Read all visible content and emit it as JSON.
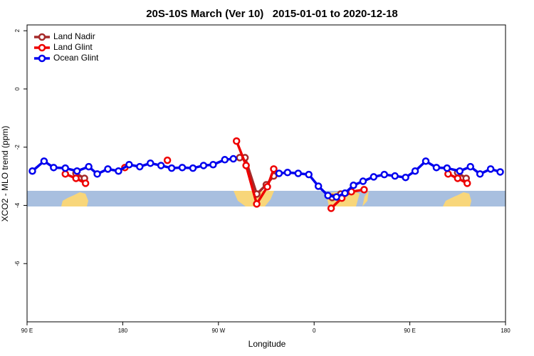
{
  "chart_data": {
    "type": "line",
    "title": "20S-10S March (Ver 10)   2015-01-01 to 2020-12-18",
    "x_label": "Longitude",
    "y_label": "XCO2 - MLO trend (ppm)",
    "xlim": [
      90,
      540
    ],
    "ylim": [
      -8,
      2.2
    ],
    "xticks": [
      {
        "value": 90,
        "label": "90 E"
      },
      180,
      {
        "value": 270,
        "label": "90 W"
      },
      {
        "value": 360,
        "label": "0"
      },
      {
        "value": 450,
        "label": "90 E"
      },
      {
        "value": 540,
        "label": "180"
      }
    ],
    "yticks": [
      2,
      0,
      -2,
      -4,
      -6
    ],
    "legend": "top-left",
    "series": [
      {
        "name": "Land Nadir",
        "color": "#a52a2a",
        "x": [
          136,
          144,
          null,
          290,
          295,
          306,
          315,
          322,
          null,
          377,
          385,
          null,
          495,
          503
        ],
        "values": [
          -2.9,
          -3.07,
          null,
          -2.36,
          -2.36,
          -3.61,
          -3.29,
          -2.99,
          null,
          -3.73,
          -3.61,
          null,
          -2.87,
          -3.07
        ]
      },
      {
        "name": "Land Glint",
        "color": "#ee0000",
        "x": [
          126,
          136,
          145,
          null,
          182,
          null,
          222,
          null,
          287,
          296,
          306,
          316,
          322,
          null,
          376,
          386,
          395,
          407,
          null,
          486,
          495,
          504
        ],
        "values": [
          -2.92,
          -3.07,
          -3.24,
          null,
          -2.7,
          null,
          -2.45,
          null,
          -1.79,
          -2.63,
          -3.95,
          -3.36,
          -2.75,
          null,
          -4.1,
          -3.75,
          -3.53,
          -3.46,
          null,
          -2.92,
          -3.07,
          -3.24
        ]
      },
      {
        "name": "Ocean Glint",
        "color": "#0000ee",
        "x": [
          95,
          106,
          115,
          126,
          137,
          148,
          156,
          166,
          176,
          186,
          196,
          206,
          216,
          226,
          236,
          246,
          256,
          265,
          276,
          284,
          null,
          327,
          335,
          345,
          355,
          364,
          373,
          381,
          389,
          397,
          406,
          416,
          426,
          436,
          446,
          455,
          465,
          475,
          485,
          497,
          507,
          516,
          526,
          535
        ],
        "values": [
          -2.82,
          -2.48,
          -2.7,
          -2.72,
          -2.82,
          -2.67,
          -2.92,
          -2.75,
          -2.82,
          -2.6,
          -2.67,
          -2.55,
          -2.63,
          -2.72,
          -2.7,
          -2.72,
          -2.63,
          -2.6,
          -2.43,
          -2.4,
          null,
          -2.9,
          -2.87,
          -2.9,
          -2.94,
          -3.34,
          -3.66,
          -3.71,
          -3.58,
          -3.31,
          -3.17,
          -3.02,
          -2.94,
          -2.99,
          -3.04,
          -2.82,
          -2.48,
          -2.7,
          -2.72,
          -2.82,
          -2.67,
          -2.92,
          -2.75,
          -2.85
        ]
      }
    ]
  }
}
